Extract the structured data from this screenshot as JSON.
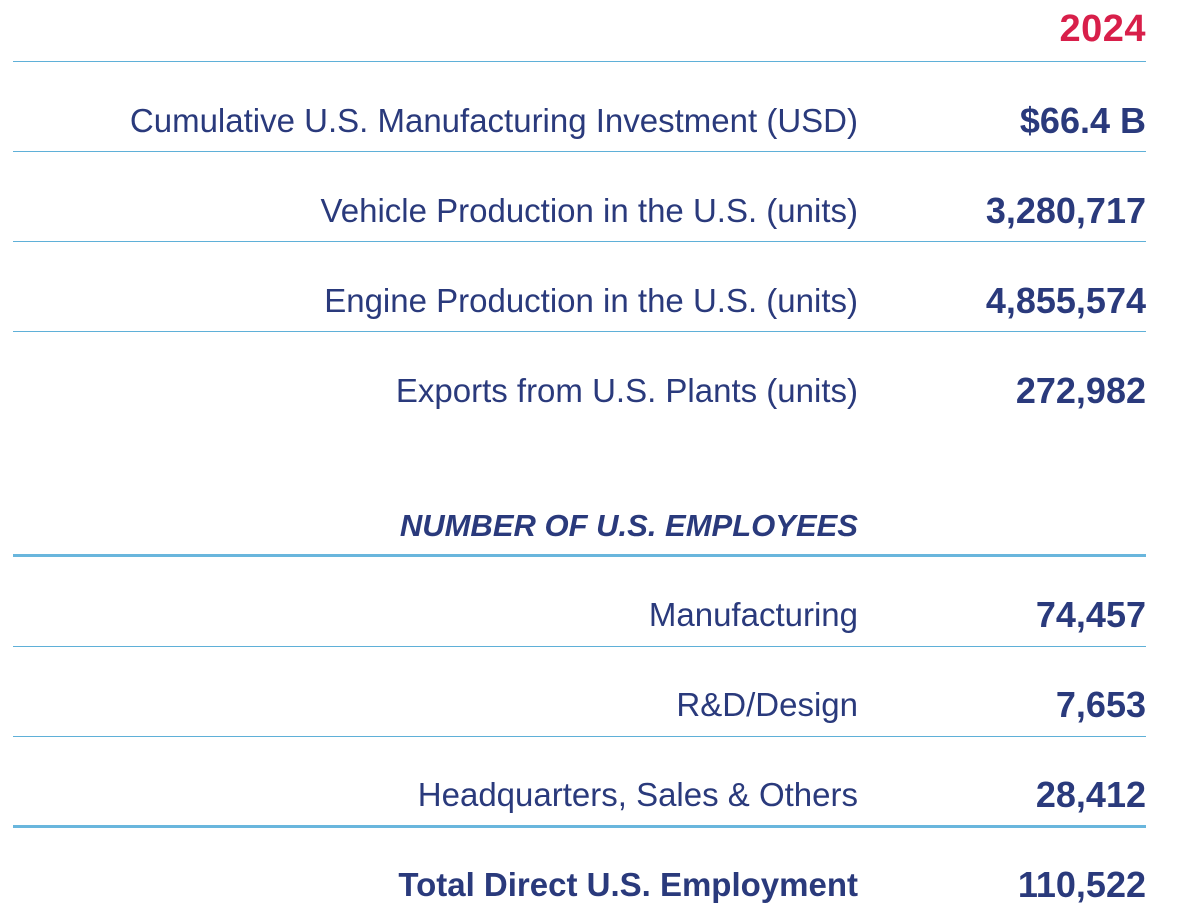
{
  "header": {
    "year": "2024"
  },
  "metrics": [
    {
      "label": "Cumulative U.S. Manufacturing Investment (USD)",
      "value": "$66.4 B"
    },
    {
      "label": "Vehicle Production in the U.S. (units)",
      "value": "3,280,717"
    },
    {
      "label": "Engine Production in the U.S. (units)",
      "value": "4,855,574"
    },
    {
      "label": "Exports from U.S. Plants (units)",
      "value": "272,982"
    }
  ],
  "employees": {
    "heading": "NUMBER OF U.S. EMPLOYEES",
    "rows": [
      {
        "label": "Manufacturing",
        "value": "74,457"
      },
      {
        "label": "R&D/Design",
        "value": "7,653"
      },
      {
        "label": "Headquarters, Sales & Others",
        "value": "28,412"
      }
    ],
    "total": {
      "label": "Total Direct U.S. Employment",
      "value": "110,522"
    }
  },
  "colors": {
    "text": "#2a3a7c",
    "year_accent": "#d81f4a",
    "rule": "#5fb0d8"
  }
}
